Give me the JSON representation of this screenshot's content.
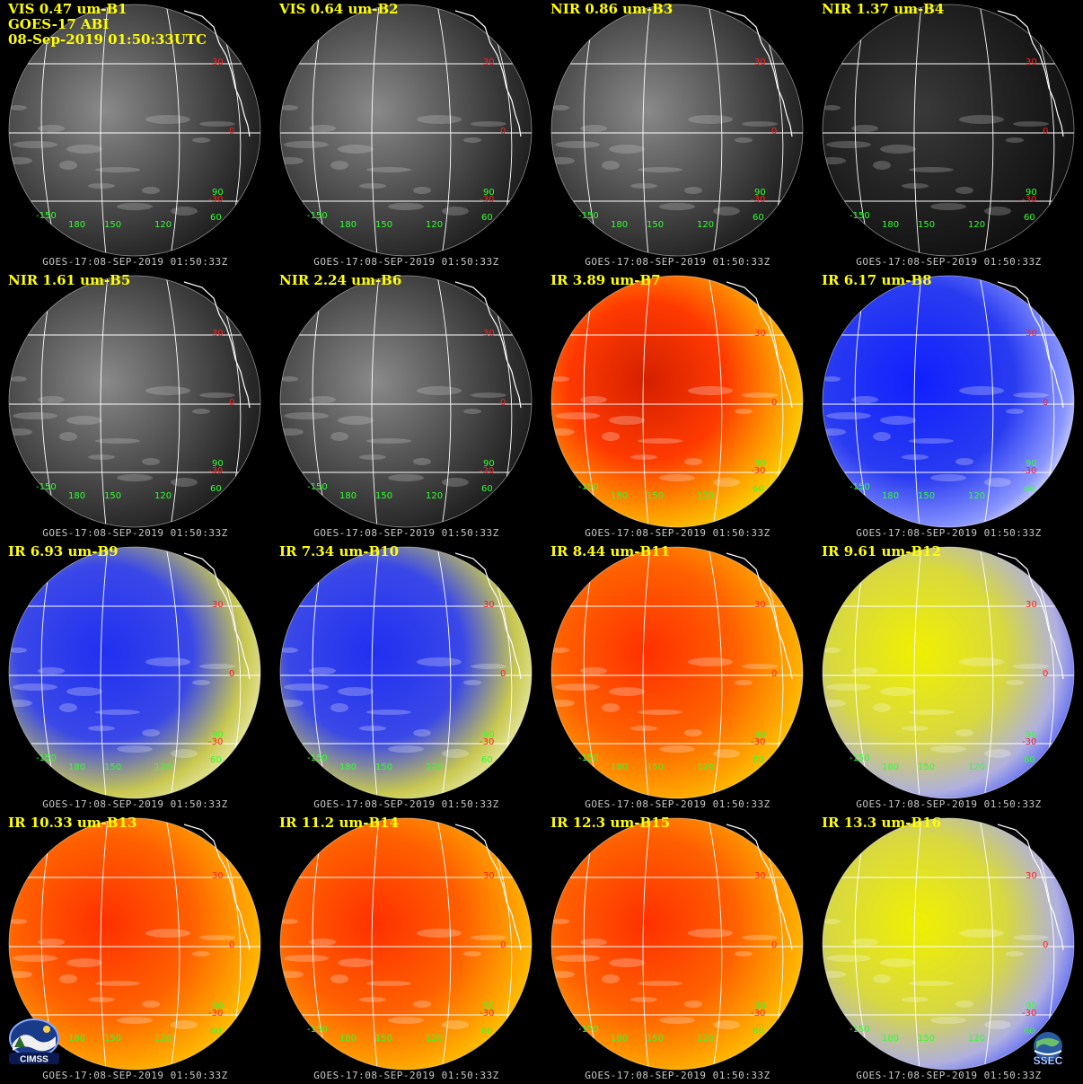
{
  "header": {
    "instrument": "GOES-17 ABI",
    "datetime": "08-Sep-2019 01:50:33UTC"
  },
  "panels": [
    {
      "band": "VIS 0.47 um-B1",
      "footer": "GOES-17:08-SEP-2019 01:50:33Z",
      "palette": "vis"
    },
    {
      "band": "VIS 0.64 um-B2",
      "footer": "GOES-17:08-SEP-2019 01:50:33Z",
      "palette": "vis"
    },
    {
      "band": "NIR 0.86 um-B3",
      "footer": "GOES-17:08-SEP-2019 01:50:33Z",
      "palette": "vis"
    },
    {
      "band": "NIR 1.37 um-B4",
      "footer": "GOES-17:08-SEP-2019 01:50:33Z",
      "palette": "dark"
    },
    {
      "band": "NIR 1.61 um-B5",
      "footer": "GOES-17:08-SEP-2019 01:50:33Z",
      "palette": "vis"
    },
    {
      "band": "NIR 2.24 um-B6",
      "footer": "GOES-17:08-SEP-2019 01:50:33Z",
      "palette": "vis"
    },
    {
      "band": "IR 3.89 um-B7",
      "footer": "GOES-17:08-SEP-2019 01:50:33Z",
      "palette": "hot"
    },
    {
      "band": "IR 6.17 um-B8",
      "footer": "GOES-17:08-SEP-2019 01:50:33Z",
      "palette": "wv"
    },
    {
      "band": "IR 6.93 um-B9",
      "footer": "GOES-17:08-SEP-2019 01:50:33Z",
      "palette": "wvy"
    },
    {
      "band": "IR 7.34 um-B10",
      "footer": "GOES-17:08-SEP-2019 01:50:33Z",
      "palette": "wvy"
    },
    {
      "band": "IR 8.44 um-B11",
      "footer": "GOES-17:08-SEP-2019 01:50:33Z",
      "palette": "warm"
    },
    {
      "band": "IR 9.61 um-B12",
      "footer": "GOES-17:08-SEP-2019 01:50:33Z",
      "palette": "yellow"
    },
    {
      "band": "IR 10.33 um-B13",
      "footer": "GOES-17:08-SEP-2019 01:50:33Z",
      "palette": "warm"
    },
    {
      "band": "IR 11.2 um-B14",
      "footer": "GOES-17:08-SEP-2019 01:50:33Z",
      "palette": "warm"
    },
    {
      "band": "IR 12.3 um-B15",
      "footer": "GOES-17:08-SEP-2019 01:50:33Z",
      "palette": "warm"
    },
    {
      "band": "IR 13.3 um-B16",
      "footer": "GOES-17:08-SEP-2019 01:50:33Z",
      "palette": "yellow"
    }
  ],
  "lat_labels": [
    "30",
    "0",
    "-30"
  ],
  "lon_labels": [
    "-150",
    "180",
    "150",
    "120",
    "60",
    "90"
  ],
  "logos": [
    {
      "name": "CIMSS",
      "text": "CIMSS"
    },
    {
      "name": "SSEC",
      "text": "SSEC"
    }
  ],
  "colors": {
    "title": "#ffff00",
    "lat_label": "#ff2020",
    "lon_label": "#30ff30",
    "grid": "#ffffff",
    "background": "#000000"
  }
}
